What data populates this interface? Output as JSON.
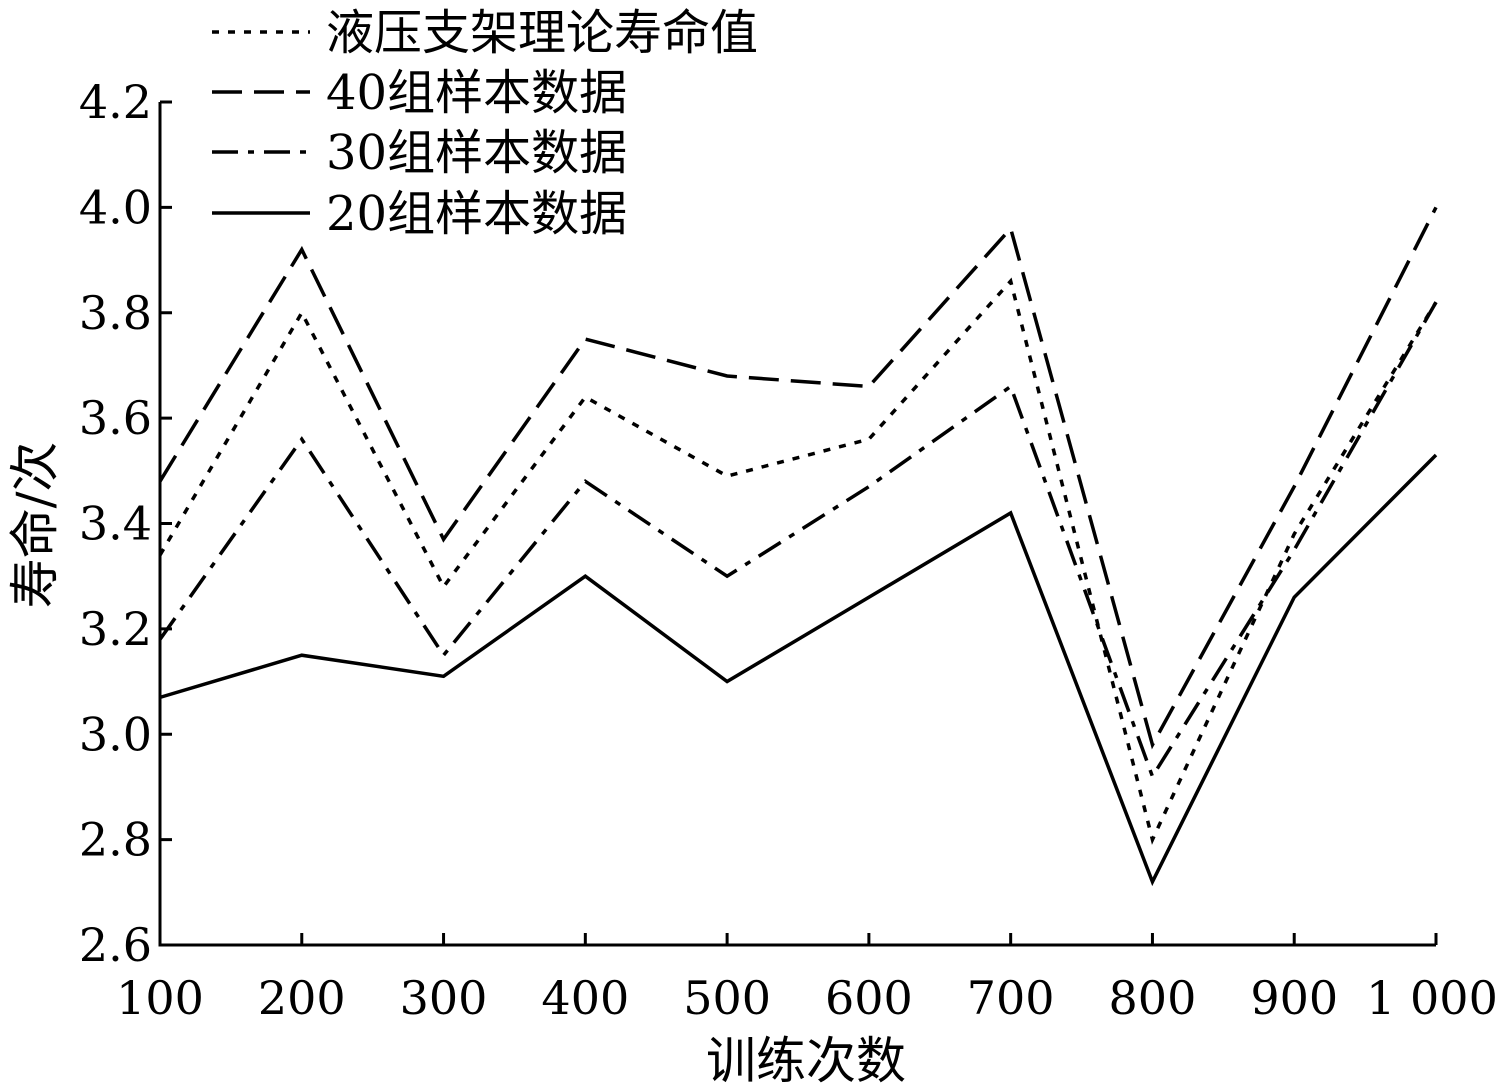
{
  "chart_data": {
    "type": "line",
    "title": "",
    "xlabel": "训练次数",
    "ylabel": "寿命/次",
    "categories": [
      "100",
      "200",
      "300",
      "400",
      "500",
      "600",
      "700",
      "800",
      "900",
      "1 000"
    ],
    "x": [
      100,
      200,
      300,
      400,
      500,
      600,
      700,
      800,
      900,
      1000
    ],
    "xlim": [
      100,
      1000
    ],
    "ylim": [
      2.6,
      4.2
    ],
    "yticks": [
      2.6,
      2.8,
      3.0,
      3.2,
      3.4,
      3.6,
      3.8,
      4.0,
      4.2
    ],
    "ytick_labels": [
      "2.6",
      "2.8",
      "3.0",
      "3.2",
      "3.4",
      "3.6",
      "3.8",
      "4.0",
      "4.2"
    ],
    "grid": false,
    "legend_position": "top-left",
    "series": [
      {
        "name": "液压支架理论寿命值",
        "style": "dotted",
        "values": [
          3.34,
          3.8,
          3.28,
          3.64,
          3.49,
          3.56,
          3.86,
          2.8,
          3.38,
          3.82
        ]
      },
      {
        "name": "40组样本数据",
        "style": "dashed",
        "values": [
          3.48,
          3.92,
          3.37,
          3.75,
          3.68,
          3.66,
          3.96,
          2.98,
          3.47,
          4.0
        ]
      },
      {
        "name": "30组样本数据",
        "style": "dashdot",
        "values": [
          3.18,
          3.56,
          3.15,
          3.48,
          3.3,
          3.47,
          3.66,
          2.92,
          3.35,
          3.82
        ]
      },
      {
        "name": "20组样本数据",
        "style": "solid",
        "values": [
          3.07,
          3.15,
          3.11,
          3.3,
          3.1,
          3.26,
          3.42,
          2.72,
          3.26,
          3.53
        ]
      }
    ]
  }
}
